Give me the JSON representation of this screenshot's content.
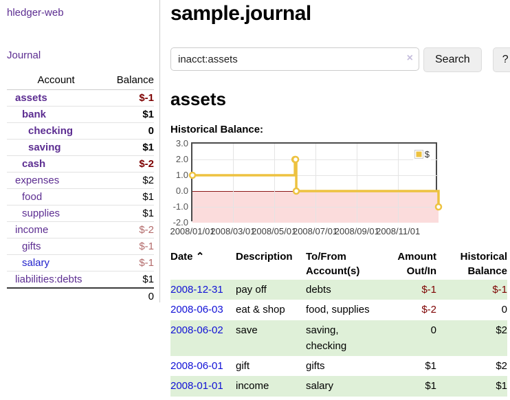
{
  "app": {
    "title_link": "hledger-web"
  },
  "sidebar": {
    "journal_link": "Journal",
    "accounts": {
      "header_account": "Account",
      "header_balance": "Balance",
      "rows": [
        {
          "name": "assets",
          "balance": "$-1"
        },
        {
          "name": "bank",
          "balance": "$1"
        },
        {
          "name": "checking",
          "balance": "0"
        },
        {
          "name": "saving",
          "balance": "$1"
        },
        {
          "name": "cash",
          "balance": "$-2"
        },
        {
          "name": "expenses",
          "balance": "$2"
        },
        {
          "name": "food",
          "balance": "$1"
        },
        {
          "name": "supplies",
          "balance": "$1"
        },
        {
          "name": "income",
          "balance": "$-2"
        },
        {
          "name": "gifts",
          "balance": "$-1"
        },
        {
          "name": "salary",
          "balance": "$-1"
        },
        {
          "name": "liabilities:debts",
          "balance": "$1"
        }
      ],
      "total": "0"
    }
  },
  "main": {
    "title": "sample.journal",
    "search": {
      "value": "inacct:assets",
      "clear_icon": "×",
      "button": "Search",
      "help_button": "?"
    },
    "account_heading": "assets",
    "chart_label": "Historical Balance:",
    "register": {
      "headers": {
        "date": "Date",
        "sort_icon": "⌃",
        "description": "Description",
        "accounts": "To/From Account(s)",
        "amount": "Amount Out/In",
        "balance": "Historical Balance"
      },
      "rows": [
        {
          "date": "2008-12-31",
          "description": "pay off",
          "accounts": "debts",
          "amount": "$-1",
          "balance": "$-1"
        },
        {
          "date": "2008-06-03",
          "description": "eat & shop",
          "accounts": "food, supplies",
          "amount": "$-2",
          "balance": "0"
        },
        {
          "date": "2008-06-02",
          "description": "save",
          "accounts": "saving, checking",
          "amount": "0",
          "balance": "$2"
        },
        {
          "date": "2008-06-01",
          "description": "gift",
          "accounts": "gifts",
          "amount": "$1",
          "balance": "$2"
        },
        {
          "date": "2008-01-01",
          "description": "income",
          "accounts": "salary",
          "amount": "$1",
          "balance": "$1"
        }
      ]
    }
  },
  "colors": {
    "accent_purple": "#5c2d91",
    "link_blue": "#2222cc",
    "date_blue": "#1010d6",
    "negative_red": "#7d0000",
    "negative_pale_red": "#b36b6b",
    "row_stripe_green": "#dff0d8",
    "chart_line_gold": "#edc240",
    "chart_below_zero_pink": "#fbdcdc",
    "chart_zero_line_red": "#8b1515"
  },
  "chart_data": {
    "type": "line",
    "title": "Historical Balance:",
    "series": [
      {
        "name": "$",
        "step": true,
        "points": [
          [
            "2008-01-01",
            1
          ],
          [
            "2008-06-01",
            2
          ],
          [
            "2008-06-02",
            2
          ],
          [
            "2008-06-03",
            0
          ],
          [
            "2008-12-31",
            -1
          ]
        ]
      }
    ],
    "x_range": [
      "2008-01-01",
      "2008-12-31"
    ],
    "ylim": [
      -2,
      3
    ],
    "y_ticks": [
      "3.0",
      "2.0",
      "1.0",
      "0.0",
      "-1.0",
      "-2.0"
    ],
    "x_ticks": [
      {
        "date": "2008-01-01",
        "label": "2008/01/01"
      },
      {
        "date": "2008-03-01",
        "label": "2008/03/01"
      },
      {
        "date": "2008-05-01",
        "label": "2008/05/01"
      },
      {
        "date": "2008-07-01",
        "label": "2008/07/01"
      },
      {
        "date": "2008-09-01",
        "label": "2008/09/01"
      },
      {
        "date": "2008-11-01",
        "label": "2008/11/01"
      }
    ],
    "grid": true,
    "legend_position": "top-right",
    "below_zero_shaded": true
  }
}
